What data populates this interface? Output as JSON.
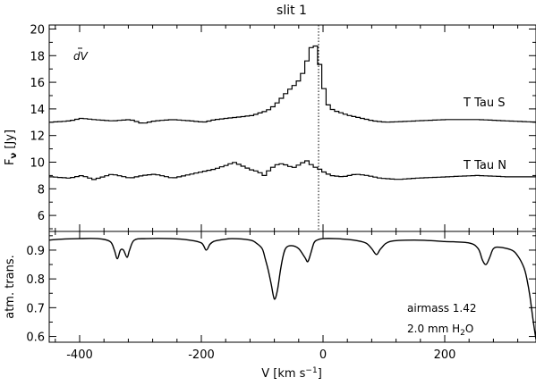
{
  "chart_data": [
    {
      "type": "line",
      "subtype": "step",
      "panel": "top",
      "title": "slit 1",
      "xlabel": "",
      "ylabel": "Fν [Jy]",
      "xlim": [
        -450,
        350
      ],
      "ylim": [
        4.8,
        20.3
      ],
      "xticks": [
        -400,
        -200,
        0,
        200
      ],
      "yticks": [
        6,
        8,
        10,
        12,
        14,
        16,
        18,
        20
      ],
      "ytick_labels": [
        "6",
        "8",
        "10",
        "12",
        "14",
        "16",
        "18",
        "20"
      ],
      "annotation": "dV",
      "reference_line_x": 0,
      "series": [
        {
          "name": "T Tau S",
          "x": [
            -450,
            -420,
            -400,
            -380,
            -350,
            -320,
            -300,
            -280,
            -250,
            -220,
            -200,
            -180,
            -160,
            -140,
            -120,
            -100,
            -90,
            -80,
            -70,
            -60,
            -50,
            -40,
            -35,
            -30,
            -25,
            -20,
            -15,
            -10,
            -5,
            0,
            5,
            10,
            20,
            40,
            60,
            80,
            100,
            150,
            200,
            250,
            300,
            350
          ],
          "y": [
            13.0,
            13.1,
            13.3,
            13.2,
            13.1,
            13.2,
            12.9,
            13.1,
            13.2,
            13.1,
            13.0,
            13.2,
            13.3,
            13.4,
            13.5,
            13.8,
            14.0,
            14.4,
            14.9,
            15.4,
            15.8,
            16.3,
            16.9,
            17.6,
            18.2,
            19.2,
            18.6,
            17.6,
            16.3,
            15.0,
            14.3,
            14.0,
            13.8,
            13.5,
            13.3,
            13.1,
            13.0,
            13.1,
            13.2,
            13.2,
            13.1,
            13.0
          ]
        },
        {
          "name": "T Tau N",
          "x": [
            -450,
            -420,
            -400,
            -380,
            -350,
            -320,
            -300,
            -280,
            -250,
            -220,
            -200,
            -180,
            -160,
            -150,
            -140,
            -130,
            -120,
            -110,
            -100,
            -90,
            -80,
            -70,
            -60,
            -50,
            -40,
            -30,
            -20,
            -10,
            0,
            10,
            30,
            50,
            70,
            90,
            120,
            150,
            200,
            250,
            300,
            350
          ],
          "y": [
            8.9,
            8.8,
            9.0,
            8.7,
            9.1,
            8.8,
            9.0,
            9.1,
            8.8,
            9.1,
            9.3,
            9.5,
            9.8,
            10.0,
            9.8,
            9.6,
            9.4,
            9.3,
            9.0,
            9.5,
            9.8,
            9.9,
            9.7,
            9.6,
            9.9,
            10.1,
            9.7,
            9.5,
            9.2,
            9.0,
            8.9,
            9.1,
            9.0,
            8.8,
            8.7,
            8.8,
            8.9,
            9.0,
            8.9,
            8.9
          ]
        }
      ]
    },
    {
      "type": "line",
      "panel": "bottom",
      "xlabel": "V [km s⁻¹]",
      "ylabel": "atm. trans.",
      "xlim": [
        -450,
        350
      ],
      "ylim": [
        0.58,
        0.965
      ],
      "xticks": [
        -400,
        -200,
        0,
        200
      ],
      "xtick_labels": [
        "-400",
        "-200",
        "0",
        "200"
      ],
      "yticks": [
        0.6,
        0.7,
        0.8,
        0.9
      ],
      "ytick_labels": [
        "0.6",
        "0.7",
        "0.8",
        "0.9"
      ],
      "annotations": [
        "airmass 1.42",
        "2.0 mm H2O"
      ],
      "series": [
        {
          "name": "",
          "x": [
            -450,
            -430,
            -400,
            -370,
            -350,
            -343,
            -338,
            -333,
            -328,
            -322,
            -318,
            -310,
            -290,
            -250,
            -220,
            -200,
            -192,
            -186,
            -180,
            -170,
            -150,
            -120,
            -110,
            -100,
            -95,
            -90,
            -85,
            -80,
            -75,
            -70,
            -65,
            -60,
            -50,
            -40,
            -30,
            -25,
            -20,
            -15,
            -10,
            0,
            20,
            50,
            70,
            80,
            88,
            95,
            110,
            150,
            200,
            240,
            255,
            262,
            268,
            274,
            280,
            290,
            310,
            320,
            330,
            335,
            340,
            345,
            350
          ],
          "y": [
            0.935,
            0.938,
            0.94,
            0.94,
            0.93,
            0.9,
            0.87,
            0.9,
            0.9,
            0.875,
            0.9,
            0.935,
            0.94,
            0.94,
            0.935,
            0.925,
            0.9,
            0.92,
            0.93,
            0.935,
            0.94,
            0.935,
            0.925,
            0.905,
            0.87,
            0.83,
            0.78,
            0.73,
            0.76,
            0.83,
            0.885,
            0.91,
            0.915,
            0.905,
            0.875,
            0.86,
            0.89,
            0.925,
            0.935,
            0.94,
            0.94,
            0.935,
            0.925,
            0.905,
            0.885,
            0.905,
            0.93,
            0.935,
            0.93,
            0.925,
            0.905,
            0.865,
            0.85,
            0.875,
            0.905,
            0.91,
            0.9,
            0.88,
            0.84,
            0.8,
            0.74,
            0.66,
            0.59
          ]
        }
      ]
    }
  ],
  "labels": {
    "title": "slit 1",
    "ylabel_top_main": "F",
    "ylabel_top_sub": "ν",
    "ylabel_top_unit": " [Jy]",
    "ylabel_bottom": "atm. trans.",
    "xlabel_main": "V [km s",
    "xlabel_sup": "−1",
    "xlabel_end": "]",
    "dv_label": "dV",
    "series_label_1": "T Tau S",
    "series_label_2": "T Tau N",
    "airmass_label": "airmass 1.42",
    "water_label_main": "2.0 mm H",
    "water_label_sub": "2",
    "water_label_end": "O"
  }
}
